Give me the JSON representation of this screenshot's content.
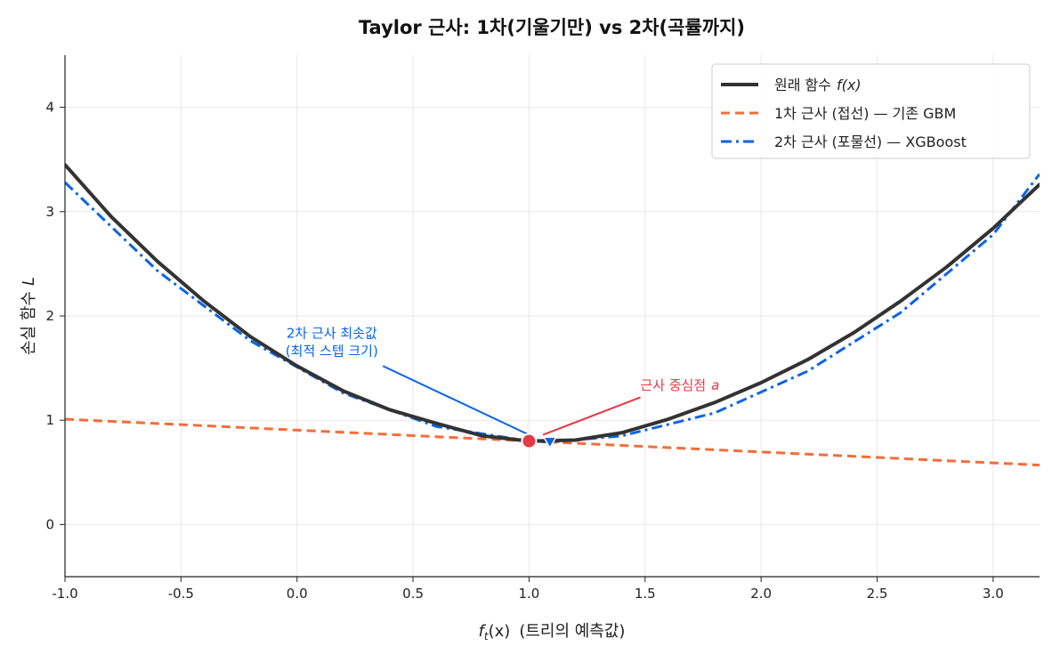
{
  "chart_data": {
    "type": "line",
    "title": "Taylor 근사: 1차(기울기만) vs 2차(곡률까지)",
    "xlabel_main": "f",
    "xlabel_sub": "t",
    "xlabel_arg": "(x)",
    "xlabel_rest": "(트리의 예측값)",
    "ylabel_main": "손실 함수",
    "ylabel_var": "L",
    "xlim": [
      -1.0,
      3.2
    ],
    "ylim": [
      -0.5,
      4.5
    ],
    "x_ticks": [
      "-1.0",
      "-0.5",
      "0.0",
      "0.5",
      "1.0",
      "1.5",
      "2.0",
      "2.5",
      "3.0"
    ],
    "x_tick_values": [
      -1.0,
      -0.5,
      0.0,
      0.5,
      1.0,
      1.5,
      2.0,
      2.5,
      3.0
    ],
    "y_ticks": [
      "0",
      "1",
      "2",
      "3",
      "4"
    ],
    "y_tick_values": [
      0,
      1,
      2,
      3,
      4
    ],
    "grid": true,
    "legend_position": "top-right",
    "series": [
      {
        "name": "원래 함수",
        "name_suffix": "f(x)",
        "style": "solid",
        "color": "#333333",
        "x": [
          -1.0,
          -0.8,
          -0.6,
          -0.4,
          -0.2,
          0.0,
          0.2,
          0.4,
          0.6,
          0.8,
          1.0,
          1.2,
          1.4,
          1.6,
          1.8,
          2.0,
          2.2,
          2.4,
          2.6,
          2.8,
          3.0,
          3.2
        ],
        "y": [
          3.45,
          2.95,
          2.52,
          2.14,
          1.8,
          1.52,
          1.28,
          1.1,
          0.97,
          0.85,
          0.8,
          0.81,
          0.88,
          1.01,
          1.17,
          1.36,
          1.58,
          1.84,
          2.14,
          2.47,
          2.84,
          3.26
        ]
      },
      {
        "name": "1차 근사 (접선) — 기존 GBM",
        "style": "dashed",
        "color": "#f36d3a",
        "x": [
          -1.0,
          3.2
        ],
        "y": [
          1.01,
          0.57
        ]
      },
      {
        "name": "2차 근사 (포물선) — XGBoost",
        "style": "dashdot",
        "color": "#0a64e6",
        "x": [
          -1.0,
          -0.6,
          -0.2,
          0.2,
          0.6,
          1.0,
          1.09,
          1.4,
          1.8,
          2.2,
          2.6,
          3.0,
          3.2
        ],
        "y": [
          3.28,
          2.43,
          1.76,
          1.26,
          0.94,
          0.8,
          0.79,
          0.85,
          1.07,
          1.47,
          2.03,
          2.78,
          3.36
        ]
      }
    ],
    "markers": [
      {
        "x": 1.0,
        "y": 0.8,
        "shape": "circle",
        "color": "#e63946"
      },
      {
        "x": 1.09,
        "y": 0.79,
        "shape": "triangle-down",
        "color": "#0a64e6"
      }
    ],
    "annotations": [
      {
        "lines": [
          "2차 근사 최솟값",
          "(최적 스텝 크기)"
        ],
        "color": "#0a64e6",
        "text_x": 0.15,
        "text_y": 1.62,
        "arrow_from": [
          0.37,
          1.52
        ],
        "arrow_to": [
          1.0,
          0.86
        ]
      },
      {
        "text": "근사 중심점",
        "var": "a",
        "color": "#e63946",
        "text_x": 1.65,
        "text_y": 1.29,
        "arrow_from": [
          1.48,
          1.22
        ],
        "arrow_to": [
          1.06,
          0.86
        ]
      }
    ]
  }
}
